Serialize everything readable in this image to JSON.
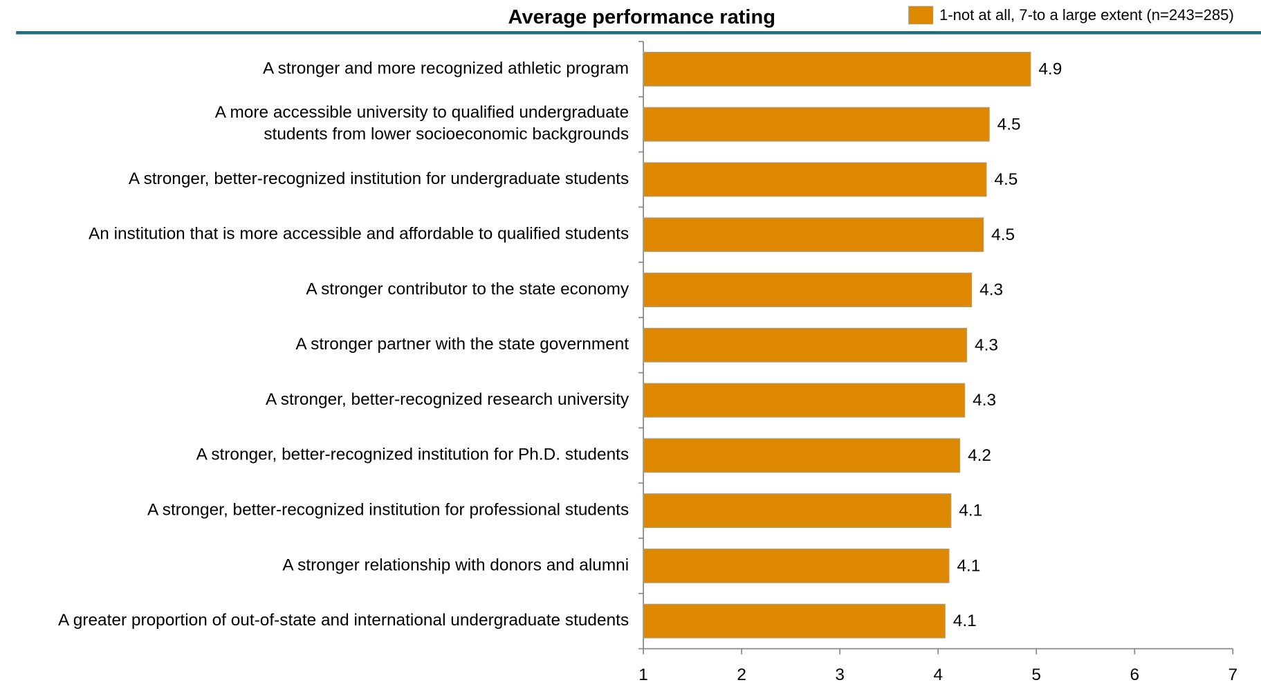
{
  "chart_data": {
    "type": "bar",
    "orientation": "horizontal",
    "title": "Average performance rating",
    "categories": [
      "A stronger and more recognized athletic program",
      "A more accessible university to qualified undergraduate\nstudents from lower socioeconomic backgrounds",
      "A stronger, better-recognized institution for undergraduate students",
      "An institution that is more accessible and affordable to qualified students",
      "A stronger contributor to the state economy",
      "A stronger partner with the state government",
      "A stronger, better-recognized research university",
      "A stronger, better-recognized institution for Ph.D. students",
      "A stronger, better-recognized institution for professional students",
      "A stronger relationship with donors and alumni",
      "A greater proportion of out-of-state and international undergraduate students"
    ],
    "series": [
      {
        "name": "1-not at all, 7-to a large extent (n=243=285)",
        "color": "#dd8800",
        "values": [
          4.94,
          4.52,
          4.49,
          4.46,
          4.34,
          4.29,
          4.27,
          4.22,
          4.13,
          4.11,
          4.07
        ],
        "value_labels": [
          "4.9",
          "4.5",
          "4.5",
          "4.5",
          "4.3",
          "4.3",
          "4.3",
          "4.2",
          "4.1",
          "4.1",
          "4.1"
        ]
      }
    ],
    "xlim": [
      1,
      7
    ],
    "xticks": [
      1,
      2,
      3,
      4,
      5,
      6,
      7
    ],
    "legend": "top-right"
  }
}
